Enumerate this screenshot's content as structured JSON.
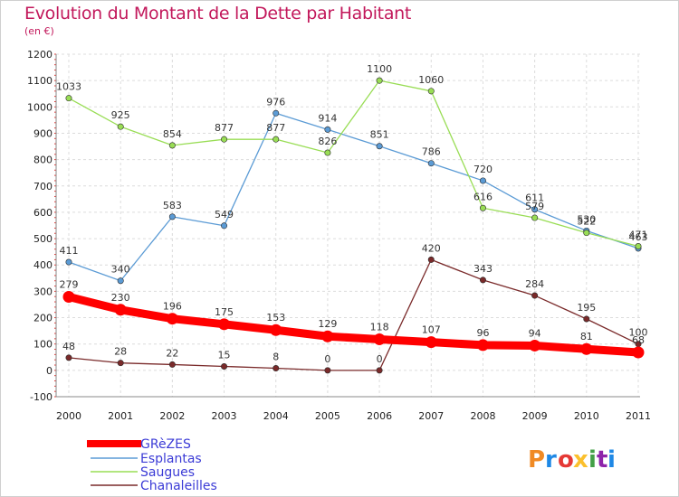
{
  "title": "Evolution du Montant de la Dette par Habitant",
  "subtitle": "(en €)",
  "brand": {
    "logo_text": "Proxiti",
    "colors": [
      "#f08a24",
      "#1e88e5",
      "#e53935",
      "#fbc02d",
      "#43a047",
      "#8e24aa",
      "#1e88e5"
    ]
  },
  "chart_data": {
    "type": "line",
    "title": "Evolution du Montant de la Dette par Habitant",
    "xlabel": "",
    "ylabel": "(en €)",
    "ylim": [
      -100,
      1200
    ],
    "yticks": [
      -100,
      0,
      100,
      200,
      300,
      400,
      500,
      600,
      700,
      800,
      900,
      1000,
      1100,
      1200
    ],
    "grid": true,
    "legend_position": "bottom-left",
    "x": [
      "2000",
      "2001",
      "2002",
      "2003",
      "2004",
      "2005",
      "2006",
      "2007",
      "2008",
      "2009",
      "2010",
      "2011"
    ],
    "series": [
      {
        "name": "GRèZES",
        "color": "#ff0000",
        "bold": true,
        "values": [
          279,
          230,
          196,
          175,
          153,
          129,
          118,
          107,
          96,
          94,
          81,
          68
        ]
      },
      {
        "name": "Esplantas",
        "color": "#5b9bd5",
        "values": [
          411,
          340,
          583,
          549,
          976,
          914,
          851,
          786,
          720,
          611,
          530,
          463
        ]
      },
      {
        "name": "Saugues",
        "color": "#99dd55",
        "values": [
          1033,
          925,
          854,
          877,
          877,
          826,
          1100,
          1060,
          616,
          579,
          522,
          471
        ]
      },
      {
        "name": "Chanaleilles",
        "color": "#7a2a2a",
        "values": [
          48,
          28,
          22,
          15,
          8,
          0,
          0,
          420,
          343,
          284,
          195,
          100
        ]
      }
    ]
  }
}
